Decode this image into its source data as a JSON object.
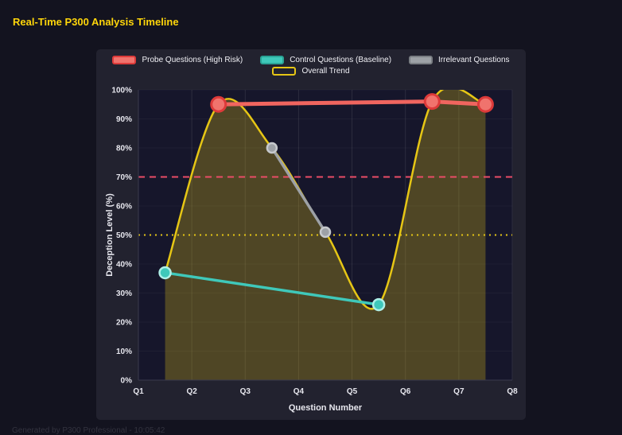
{
  "page": {
    "title": "Real-Time P300 Analysis Timeline",
    "footer": "Generated by P300 Professional - 10:05:42"
  },
  "chart_data": {
    "type": "line",
    "title": "Real-Time P300 Analysis Timeline",
    "xlabel": "Question Number",
    "ylabel": "Deception Level (%)",
    "x_ticks": [
      "Q1",
      "Q2",
      "Q3",
      "Q4",
      "Q5",
      "Q6",
      "Q7",
      "Q8"
    ],
    "y_ticks": [
      "0%",
      "10%",
      "20%",
      "30%",
      "40%",
      "50%",
      "60%",
      "70%",
      "80%",
      "90%",
      "100%"
    ],
    "xlim": [
      1,
      8
    ],
    "ylim": [
      0,
      100
    ],
    "grid": "vertical",
    "legend_position": "top",
    "series": [
      {
        "name": "Probe Questions (High Risk)",
        "x": [
          2.5,
          6.5,
          7.5
        ],
        "y": [
          95,
          96,
          95
        ],
        "line_color": "#f0655f",
        "line_width": 5,
        "point_fill": "#f0736d",
        "point_border": "#dd3a3a",
        "point_radius": 9,
        "smooth": false,
        "marker_fill": "#f0736d",
        "marker_border": "#dd3a3a"
      },
      {
        "name": "Control Questions (Baseline)",
        "x": [
          1.5,
          5.5
        ],
        "y": [
          37,
          26
        ],
        "line_color": "#3fc8ba",
        "line_width": 3.5,
        "point_fill": "#3fc8ba",
        "point_border": "#aef0e8",
        "point_radius": 7,
        "smooth": false,
        "marker_fill": "#3fc8ba",
        "marker_border": "#2aa396"
      },
      {
        "name": "Irrelevant Questions",
        "x": [
          3.5,
          4.5
        ],
        "y": [
          80,
          51
        ],
        "line_color": "#9da1a6",
        "line_width": 3.5,
        "point_fill": "#9da1a6",
        "point_border": "#c6c9cd",
        "point_radius": 6,
        "smooth": false,
        "marker_fill": "#9da1a6",
        "marker_border": "#7a7e83"
      },
      {
        "name": "Overall Trend",
        "x": [
          1.5,
          2.5,
          3.5,
          4.5,
          5.5,
          6.5,
          7.5
        ],
        "y": [
          37,
          95,
          80,
          51,
          26,
          96,
          95
        ],
        "line_color": "#e6c615",
        "line_width": 2.5,
        "point_fill": "#e6c615",
        "point_border": "#e6c615",
        "point_radius": 0,
        "smooth": true,
        "area_fill": "rgba(230,198,21,0.28)",
        "marker_fill": "#22222f",
        "marker_border": "#e6c615"
      }
    ],
    "thresholds": [
      {
        "value": 70,
        "color": "#ea4c67",
        "dash": "8 6",
        "width": 2
      },
      {
        "value": 50,
        "color": "#e6c615",
        "dash": "2 5",
        "width": 2
      }
    ],
    "colors": {
      "panel_bg": "#22222f",
      "plot_bg": "#16162b",
      "page_bg": "#13131f",
      "grid": "#2c2c3e",
      "tick_text": "#e7e7ee",
      "title": "#ffd60a"
    }
  }
}
